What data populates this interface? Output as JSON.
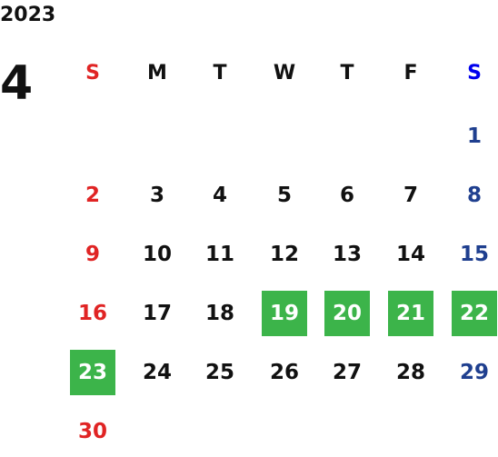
{
  "year": "2023",
  "month": "4",
  "weekdays": [
    "S",
    "M",
    "T",
    "W",
    "T",
    "F",
    "S"
  ],
  "weeks": [
    [
      null,
      null,
      null,
      null,
      null,
      null,
      {
        "day": "1"
      }
    ],
    [
      {
        "day": "2"
      },
      {
        "day": "3"
      },
      {
        "day": "4"
      },
      {
        "day": "5"
      },
      {
        "day": "6"
      },
      {
        "day": "7"
      },
      {
        "day": "8"
      }
    ],
    [
      {
        "day": "9"
      },
      {
        "day": "10"
      },
      {
        "day": "11"
      },
      {
        "day": "12"
      },
      {
        "day": "13"
      },
      {
        "day": "14"
      },
      {
        "day": "15"
      }
    ],
    [
      {
        "day": "16"
      },
      {
        "day": "17"
      },
      {
        "day": "18"
      },
      {
        "day": "19",
        "highlight": true
      },
      {
        "day": "20",
        "highlight": true
      },
      {
        "day": "21",
        "highlight": true
      },
      {
        "day": "22",
        "highlight": true
      }
    ],
    [
      {
        "day": "23",
        "highlight": true
      },
      {
        "day": "24"
      },
      {
        "day": "25"
      },
      {
        "day": "26"
      },
      {
        "day": "27"
      },
      {
        "day": "28"
      },
      {
        "day": "29"
      }
    ],
    [
      {
        "day": "30"
      },
      null,
      null,
      null,
      null,
      null,
      null
    ]
  ],
  "highlight_color": "#3cb44a"
}
